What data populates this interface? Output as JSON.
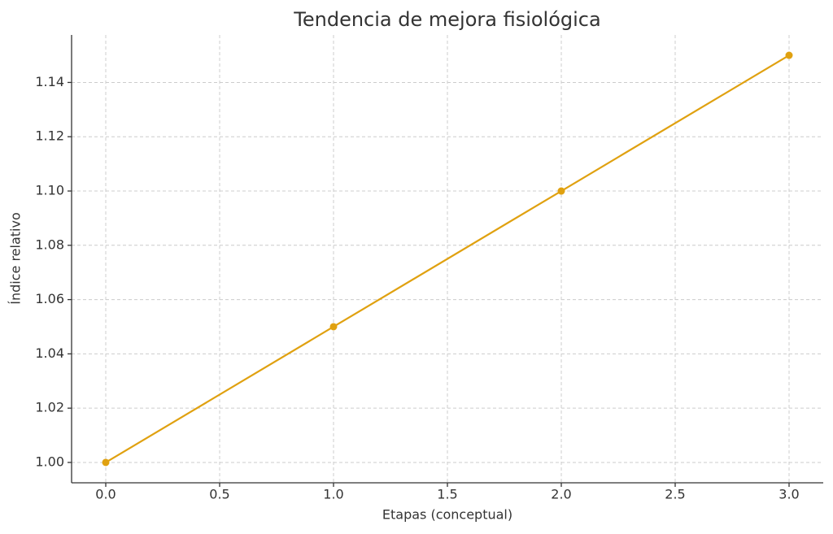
{
  "chart_data": {
    "type": "line",
    "title": "Tendencia de mejora fisiológica",
    "x_label": "Etapas (conceptual)",
    "y_label": "Índice relativo",
    "x": [
      0,
      1,
      2,
      3
    ],
    "series": [
      {
        "name": "Índice relativo",
        "color": "#e0a110",
        "values": [
          1.0,
          1.05,
          1.1,
          1.15
        ]
      }
    ],
    "xlim": [
      -0.15,
      3.15
    ],
    "xticks": [
      {
        "value": 0,
        "label": "0.0"
      },
      0.5,
      {
        "value": 1,
        "label": "1.0"
      },
      1.5,
      {
        "value": 2,
        "label": "2.0"
      },
      2.5,
      {
        "value": 3,
        "label": "3.0"
      }
    ],
    "ylim": [
      0.9925,
      1.1575
    ],
    "yticks": [
      {
        "value": 1.0,
        "label": "1.00"
      },
      1.02,
      1.04,
      1.06,
      1.08,
      {
        "value": 1.1,
        "label": "1.10"
      },
      1.12,
      1.14
    ],
    "grid": true
  }
}
